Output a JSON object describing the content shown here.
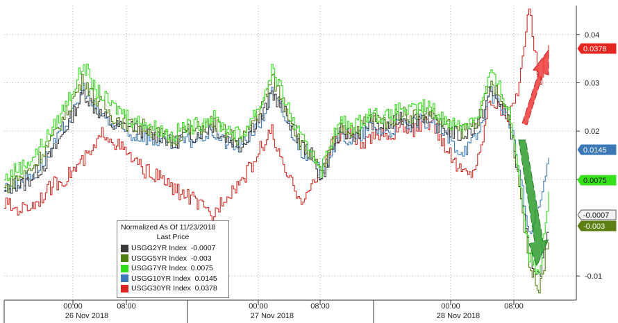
{
  "chart_data": {
    "type": "line",
    "legend_title": "Normalized As Of 11/23/2018",
    "legend_subtitle": "Last Price",
    "legend_position": "bottom-left",
    "y_ticks": [
      0.04,
      0.03,
      0.02,
      0.01,
      -0.01
    ],
    "y_tick_labels": [
      "0.04",
      "0.03",
      "0.02",
      "0.01",
      "-0.01"
    ],
    "ylim": [
      -0.015,
      0.046
    ],
    "grid": true,
    "x_time_ticks": [
      "00:00",
      "08:00",
      "00:00",
      "08:00",
      "00:00",
      "08:00"
    ],
    "x_date_labels": [
      "26 Nov 2018",
      "27 Nov 2018",
      "28 Nov 2018"
    ],
    "series": [
      {
        "name": "USGG2YR Index",
        "last": "-0.0007",
        "color": "#3a3a3a",
        "values": [
          0.007,
          0.009,
          0.009,
          0.011,
          0.013,
          0.016,
          0.02,
          0.024,
          0.028,
          0.025,
          0.023,
          0.021,
          0.021,
          0.021,
          0.02,
          0.019,
          0.019,
          0.017,
          0.019,
          0.019,
          0.02,
          0.021,
          0.019,
          0.018,
          0.017,
          0.021,
          0.023,
          0.028,
          0.025,
          0.021,
          0.017,
          0.015,
          0.01,
          0.016,
          0.02,
          0.019,
          0.02,
          0.022,
          0.021,
          0.021,
          0.023,
          0.022,
          0.023,
          0.023,
          0.021,
          0.02,
          0.019,
          0.02,
          0.022,
          0.028,
          0.026,
          0.022,
          0.009,
          -0.006,
          -0.01,
          -0.001
        ]
      },
      {
        "name": "USGG5YR Index",
        "last": "-0.003",
        "color": "#4f7f0f",
        "values": [
          0.008,
          0.01,
          0.011,
          0.013,
          0.016,
          0.019,
          0.023,
          0.027,
          0.031,
          0.027,
          0.025,
          0.023,
          0.022,
          0.021,
          0.021,
          0.02,
          0.019,
          0.018,
          0.02,
          0.02,
          0.021,
          0.022,
          0.02,
          0.019,
          0.018,
          0.022,
          0.025,
          0.031,
          0.027,
          0.022,
          0.017,
          0.015,
          0.011,
          0.017,
          0.021,
          0.02,
          0.021,
          0.023,
          0.022,
          0.022,
          0.024,
          0.023,
          0.024,
          0.024,
          0.022,
          0.021,
          0.02,
          0.021,
          0.023,
          0.03,
          0.027,
          0.023,
          0.009,
          -0.008,
          -0.012,
          -0.003
        ]
      },
      {
        "name": "USGG7YR Index",
        "last": "0.0075",
        "color": "#33dd1d",
        "values": [
          0.01,
          0.012,
          0.013,
          0.015,
          0.018,
          0.021,
          0.025,
          0.029,
          0.034,
          0.029,
          0.027,
          0.025,
          0.024,
          0.022,
          0.022,
          0.021,
          0.02,
          0.019,
          0.021,
          0.021,
          0.022,
          0.023,
          0.021,
          0.02,
          0.019,
          0.023,
          0.026,
          0.033,
          0.028,
          0.023,
          0.018,
          0.016,
          0.012,
          0.018,
          0.022,
          0.021,
          0.022,
          0.024,
          0.023,
          0.023,
          0.025,
          0.024,
          0.025,
          0.025,
          0.023,
          0.022,
          0.021,
          0.022,
          0.024,
          0.032,
          0.029,
          0.024,
          0.011,
          -0.006,
          -0.009,
          0.0075
        ]
      },
      {
        "name": "USGG10YR Index",
        "last": "0.0145",
        "color": "#3a78b8",
        "values": [
          0.008,
          0.009,
          0.01,
          0.011,
          0.014,
          0.017,
          0.021,
          0.024,
          0.029,
          0.025,
          0.023,
          0.021,
          0.02,
          0.019,
          0.019,
          0.018,
          0.018,
          0.017,
          0.018,
          0.018,
          0.019,
          0.02,
          0.018,
          0.017,
          0.017,
          0.02,
          0.022,
          0.028,
          0.024,
          0.02,
          0.016,
          0.014,
          0.011,
          0.016,
          0.019,
          0.018,
          0.019,
          0.021,
          0.02,
          0.02,
          0.022,
          0.021,
          0.022,
          0.022,
          0.02,
          0.018,
          0.016,
          0.017,
          0.02,
          0.028,
          0.026,
          0.022,
          0.012,
          -0.002,
          0.004,
          0.0145
        ]
      },
      {
        "name": "USGG30YR Index",
        "last": "0.0378",
        "color": "#d6261f",
        "values": [
          0.005,
          0.004,
          0.004,
          0.005,
          0.007,
          0.009,
          0.01,
          0.012,
          0.014,
          0.016,
          0.02,
          0.018,
          0.016,
          0.014,
          0.012,
          0.011,
          0.01,
          0.008,
          0.007,
          0.006,
          0.004,
          0.002,
          0.006,
          0.008,
          0.01,
          0.013,
          0.017,
          0.02,
          0.013,
          0.009,
          0.006,
          0.008,
          0.012,
          0.017,
          0.019,
          0.02,
          0.017,
          0.018,
          0.02,
          0.019,
          0.021,
          0.02,
          0.021,
          0.022,
          0.019,
          0.015,
          0.012,
          0.011,
          0.015,
          0.027,
          0.025,
          0.023,
          0.03,
          0.045,
          0.03,
          0.0378
        ]
      }
    ]
  }
}
